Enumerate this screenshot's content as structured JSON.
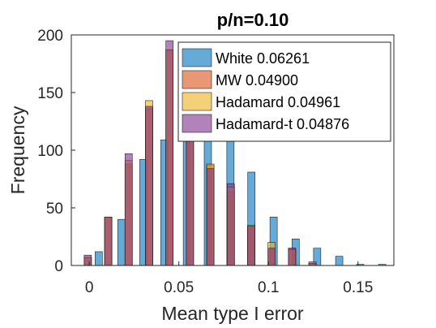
{
  "chart_data": {
    "type": "bar",
    "subtype": "histogram",
    "title": "p/n=0.10",
    "xlabel": "Mean type I error",
    "ylabel": "Frequency",
    "xlim": [
      -0.01,
      0.17
    ],
    "ylim": [
      0,
      200
    ],
    "xticks": [
      0,
      0.05,
      0.1,
      0.15
    ],
    "xtick_labels": [
      "0",
      "0.05",
      "0.1",
      "0.15"
    ],
    "yticks": [
      0,
      50,
      100,
      150,
      200
    ],
    "ytick_labels": [
      "0",
      "50",
      "100",
      "150",
      "200"
    ],
    "grid": false,
    "legend_position": "top-right",
    "series": [
      {
        "name": "White 0.06261",
        "color": "#0072BD",
        "bars": [
          {
            "x": 0.0053,
            "y": 12
          },
          {
            "x": 0.0179,
            "y": 40
          },
          {
            "x": 0.0302,
            "y": 92
          },
          {
            "x": 0.0419,
            "y": 109
          },
          {
            "x": 0.0545,
            "y": 128
          },
          {
            "x": 0.0662,
            "y": 120
          },
          {
            "x": 0.0788,
            "y": 108
          },
          {
            "x": 0.0905,
            "y": 81
          },
          {
            "x": 0.1029,
            "y": 42
          },
          {
            "x": 0.1152,
            "y": 23
          },
          {
            "x": 0.1272,
            "y": 15
          },
          {
            "x": 0.1395,
            "y": 8
          },
          {
            "x": 0.1512,
            "y": 1
          },
          {
            "x": 0.1635,
            "y": 1
          }
        ]
      },
      {
        "name": "MW 0.04900",
        "color": "#D95319",
        "bars": [
          {
            "x": -0.0008,
            "y": 7
          },
          {
            "x": 0.0106,
            "y": 42
          },
          {
            "x": 0.022,
            "y": 88
          },
          {
            "x": 0.0334,
            "y": 136
          },
          {
            "x": 0.0448,
            "y": 187
          },
          {
            "x": 0.0562,
            "y": 170
          },
          {
            "x": 0.0676,
            "y": 87
          },
          {
            "x": 0.079,
            "y": 64
          },
          {
            "x": 0.0904,
            "y": 34
          },
          {
            "x": 0.1018,
            "y": 14
          },
          {
            "x": 0.1132,
            "y": 15
          },
          {
            "x": 0.1246,
            "y": 3
          }
        ]
      },
      {
        "name": "Hadamard 0.04961",
        "color": "#EDB120",
        "bars": [
          {
            "x": -0.0008,
            "y": 7
          },
          {
            "x": 0.0106,
            "y": 42
          },
          {
            "x": 0.022,
            "y": 91
          },
          {
            "x": 0.0334,
            "y": 143
          },
          {
            "x": 0.0448,
            "y": 187
          },
          {
            "x": 0.0562,
            "y": 166
          },
          {
            "x": 0.0676,
            "y": 88
          },
          {
            "x": 0.079,
            "y": 68
          },
          {
            "x": 0.0904,
            "y": 35
          },
          {
            "x": 0.1018,
            "y": 20
          },
          {
            "x": 0.1132,
            "y": 14
          },
          {
            "x": 0.1246,
            "y": 3
          }
        ]
      },
      {
        "name": "Hadamard-t 0.04876",
        "color": "#7E2F8E",
        "bars": [
          {
            "x": -0.0008,
            "y": 9
          },
          {
            "x": 0.0106,
            "y": 42
          },
          {
            "x": 0.022,
            "y": 97
          },
          {
            "x": 0.0334,
            "y": 138
          },
          {
            "x": 0.0448,
            "y": 195
          },
          {
            "x": 0.0562,
            "y": 165
          },
          {
            "x": 0.0676,
            "y": 84
          },
          {
            "x": 0.079,
            "y": 71
          },
          {
            "x": 0.0904,
            "y": 34
          },
          {
            "x": 0.1018,
            "y": 15
          },
          {
            "x": 0.1132,
            "y": 15
          },
          {
            "x": 0.1246,
            "y": 2
          }
        ]
      }
    ]
  }
}
